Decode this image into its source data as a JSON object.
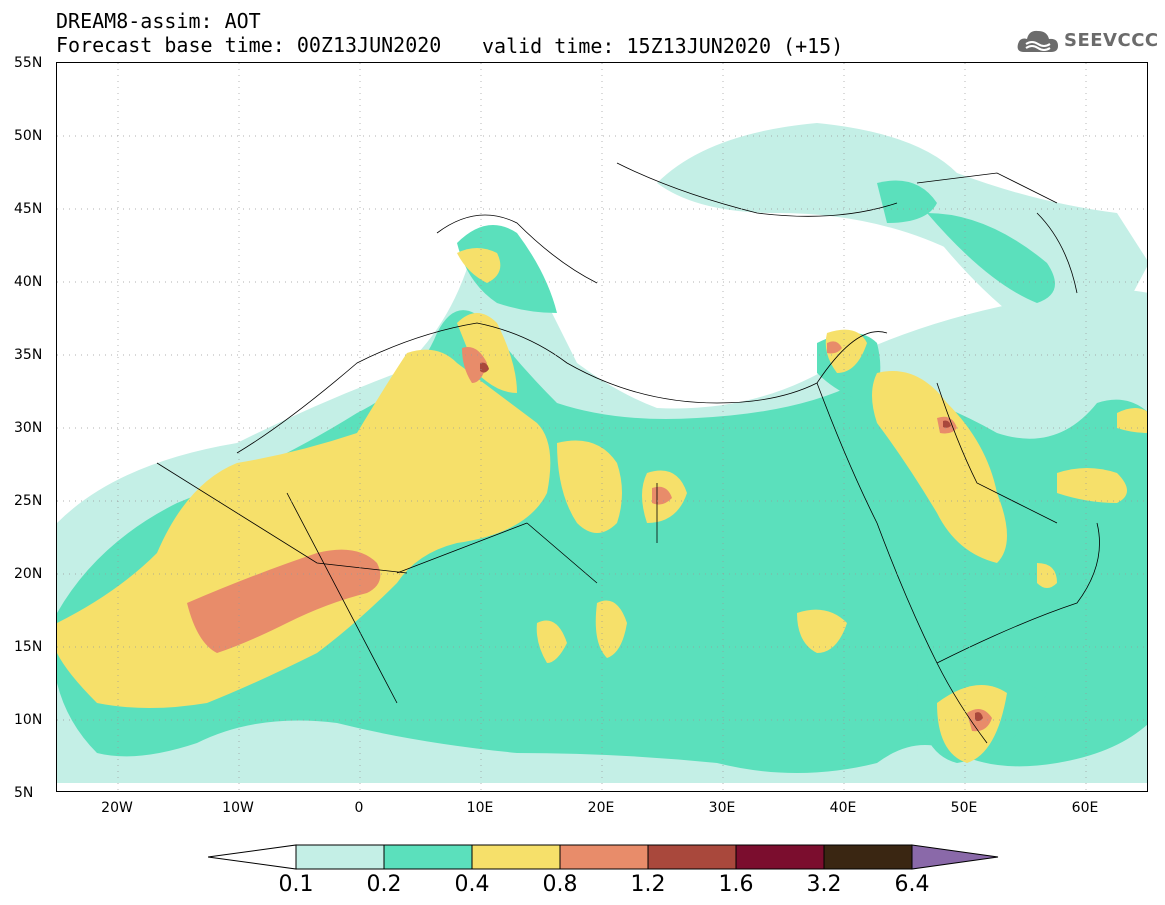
{
  "header": {
    "title": "DREAM8-assim: AOT",
    "base_time": "Forecast base time: 00Z13JUN2020",
    "valid_time": "valid time: 15Z13JUN2020 (+15)"
  },
  "logo": {
    "text": "SEEVCCC",
    "icon": "cloud-icon"
  },
  "map": {
    "lat_labels": [
      "55N",
      "50N",
      "45N",
      "40N",
      "35N",
      "30N",
      "25N",
      "20N",
      "15N",
      "10N",
      "5N"
    ],
    "lon_labels": [
      "20W",
      "10W",
      "0",
      "10E",
      "20E",
      "30E",
      "40E",
      "50E",
      "60E"
    ],
    "extent": {
      "lon_min": -25,
      "lon_max": 65,
      "lat_min": 5,
      "lat_max": 55
    },
    "field": "Aerosol Optical Thickness (AOT)"
  },
  "colorbar": {
    "labels": [
      "0.1",
      "0.2",
      "0.4",
      "0.8",
      "1.2",
      "1.6",
      "3.2",
      "6.4"
    ],
    "colors": [
      "#ffffff",
      "#c4efe6",
      "#5be0bc",
      "#f6e06a",
      "#e88c6a",
      "#a9483c",
      "#7b0d2e",
      "#3a2612",
      "#8a69a9"
    ]
  }
}
